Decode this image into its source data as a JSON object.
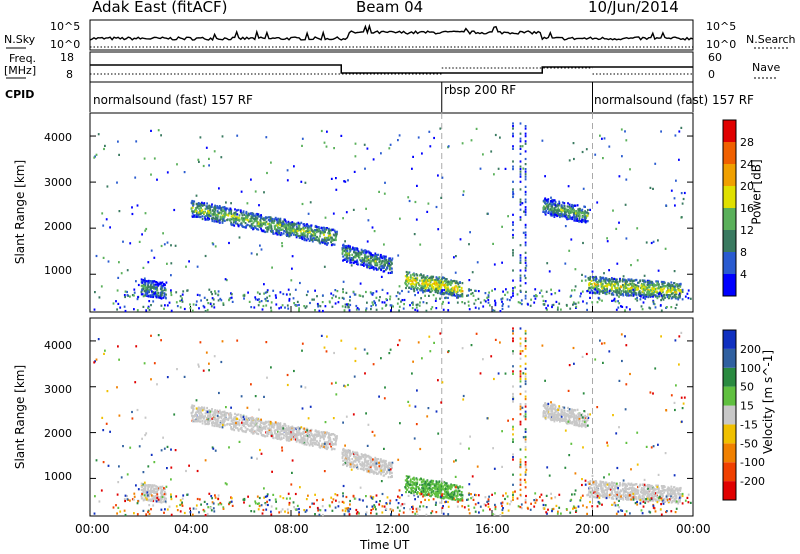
{
  "header": {
    "left_title": "Adak East (fitACF)",
    "center_title": "Beam 04",
    "right_title": "10/Jun/2014"
  },
  "panels": {
    "nsky_label": "N.Sky",
    "nsky_ticks": [
      "10^5",
      "10^0"
    ],
    "nsearch_label": "N.Search",
    "nsearch_ticks": [
      "10^5",
      "10^0"
    ],
    "freq_label_1": "Freq.",
    "freq_label_2": "[MHz]",
    "freq_ticks": [
      "18",
      "8"
    ],
    "nave_label": "Nave",
    "nave_ticks": [
      "60",
      "0"
    ],
    "cpid_label": "CPID",
    "cpid_segments": [
      "normalsound (fast) 157 RF",
      "rbsp 200 RF",
      "normalsound (fast) 157 RF"
    ]
  },
  "chart_data": [
    {
      "type": "heatmap",
      "title": "",
      "xlabel": "",
      "ylabel": "Slant Range [km]",
      "xlim": [
        "00:00",
        "24:00"
      ],
      "ylim": [
        180,
        4500
      ],
      "y_ticks": [
        "1000",
        "2000",
        "3000",
        "4000"
      ],
      "colorbar_label": "Power [dB]",
      "colorbar_ticks": [
        "4",
        "8",
        "12",
        "16",
        "20",
        "24",
        "28"
      ],
      "colorbar_colors": [
        "#0000ff",
        "#2a5bd0",
        "#3a7a60",
        "#5ab05a",
        "#e0e000",
        "#f0a000",
        "#f06000",
        "#e00000"
      ],
      "echo_regions": [
        {
          "t_start": 4.0,
          "t_end": 9.8,
          "range_start": 2450,
          "range_end": 1800,
          "power_db": 14
        },
        {
          "t_start": 10.0,
          "t_end": 12.0,
          "range_start": 1500,
          "range_end": 1200,
          "power_db": 12
        },
        {
          "t_start": 12.5,
          "t_end": 14.8,
          "range_start": 900,
          "range_end": 700,
          "power_db": 18
        },
        {
          "t_start": 19.8,
          "t_end": 23.5,
          "range_start": 800,
          "range_end": 650,
          "power_db": 16
        },
        {
          "t_start": 2.0,
          "t_end": 3.0,
          "range_start": 750,
          "range_end": 650,
          "power_db": 10
        },
        {
          "t_start": 18.0,
          "t_end": 19.8,
          "range_start": 2500,
          "range_end": 2300,
          "power_db": 12
        }
      ]
    },
    {
      "type": "heatmap",
      "title": "",
      "xlabel": "Time UT",
      "ylabel": "Slant Range [km]",
      "xlim": [
        "00:00",
        "24:00"
      ],
      "ylim": [
        180,
        4500
      ],
      "y_ticks": [
        "1000",
        "2000",
        "3000",
        "4000"
      ],
      "x_ticks": [
        "00:00",
        "04:00",
        "08:00",
        "12:00",
        "16:00",
        "20:00",
        "00:00"
      ],
      "colorbar_label": "Velocity [m s^-1]",
      "colorbar_ticks": [
        "200",
        "100",
        "50",
        "15",
        "-15",
        "-50",
        "-100",
        "-200"
      ],
      "colorbar_colors": [
        "#1030c0",
        "#3060a0",
        "#2a8a40",
        "#60c040",
        "#c8c8c8",
        "#f0c000",
        "#f08000",
        "#f04000",
        "#e00000"
      ]
    }
  ]
}
